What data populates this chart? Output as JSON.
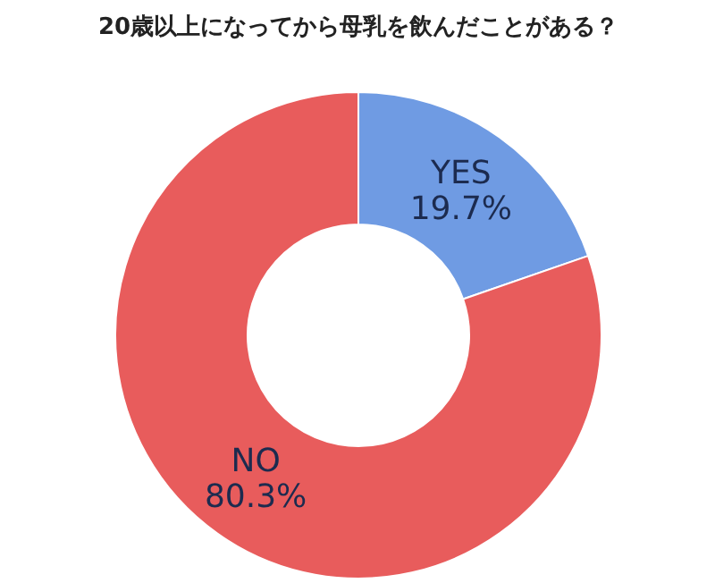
{
  "chart_data": {
    "type": "donut",
    "title": "20歳以上になってから母乳を飲んだことがある？",
    "categories": [
      "YES",
      "NO"
    ],
    "values": [
      19.7,
      80.3
    ],
    "colors": [
      "#6f9be3",
      "#e85c5c"
    ],
    "value_labels": [
      "19.7%",
      "80.3%"
    ]
  }
}
